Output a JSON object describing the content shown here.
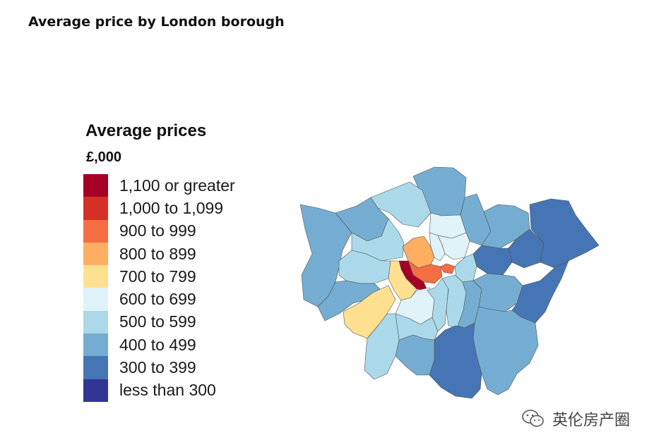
{
  "header": {
    "title": "Average price by London borough"
  },
  "legend": {
    "title": "Average prices",
    "unit": "£,000",
    "classes": [
      {
        "label": "1,100 or greater",
        "color": "#a50026"
      },
      {
        "label": "1,000 to 1,099",
        "color": "#d73027"
      },
      {
        "label": "900 to 999",
        "color": "#f46d43"
      },
      {
        "label": "800 to 899",
        "color": "#fdae61"
      },
      {
        "label": "700 to 799",
        "color": "#fee090"
      },
      {
        "label": "600 to 699",
        "color": "#e0f3f8"
      },
      {
        "label": "500 to 599",
        "color": "#abd9e9"
      },
      {
        "label": "400 to 499",
        "color": "#74add1"
      },
      {
        "label": "300 to 399",
        "color": "#4575b4"
      },
      {
        "label": "less than 300",
        "color": "#313695"
      }
    ]
  },
  "map": {
    "border_color": "#555555",
    "regions": [
      {
        "name": "Enfield",
        "class": "400 to 499"
      },
      {
        "name": "Barnet",
        "class": "500 to 599"
      },
      {
        "name": "Harrow",
        "class": "400 to 499"
      },
      {
        "name": "Hillingdon",
        "class": "400 to 499"
      },
      {
        "name": "Brent",
        "class": "500 to 599"
      },
      {
        "name": "Haringey",
        "class": "600 to 699"
      },
      {
        "name": "Waltham Forest",
        "class": "400 to 499"
      },
      {
        "name": "Redbridge",
        "class": "400 to 499"
      },
      {
        "name": "Havering",
        "class": "300 to 399"
      },
      {
        "name": "Barking and Dagenham",
        "class": "300 to 399"
      },
      {
        "name": "Newham",
        "class": "300 to 399"
      },
      {
        "name": "Hackney",
        "class": "600 to 699"
      },
      {
        "name": "Islington",
        "class": "600 to 699"
      },
      {
        "name": "Camden",
        "class": "800 to 899"
      },
      {
        "name": "City of London",
        "class": "900 to 999"
      },
      {
        "name": "Tower Hamlets",
        "class": "500 to 599"
      },
      {
        "name": "Westminster",
        "class": "900 to 999"
      },
      {
        "name": "Kensington and Chelsea",
        "class": "1,100 or greater"
      },
      {
        "name": "Hammersmith and Fulham",
        "class": "700 to 799"
      },
      {
        "name": "Ealing",
        "class": "500 to 599"
      },
      {
        "name": "Hounslow",
        "class": "400 to 499"
      },
      {
        "name": "Richmond upon Thames",
        "class": "700 to 799"
      },
      {
        "name": "Wandsworth",
        "class": "600 to 699"
      },
      {
        "name": "Lambeth",
        "class": "500 to 599"
      },
      {
        "name": "Southwark",
        "class": "500 to 599"
      },
      {
        "name": "Lewisham",
        "class": "400 to 499"
      },
      {
        "name": "Greenwich",
        "class": "400 to 499"
      },
      {
        "name": "Bexley",
        "class": "300 to 399"
      },
      {
        "name": "Bromley",
        "class": "400 to 499"
      },
      {
        "name": "Croydon",
        "class": "300 to 399"
      },
      {
        "name": "Sutton",
        "class": "400 to 499"
      },
      {
        "name": "Merton",
        "class": "500 to 599"
      },
      {
        "name": "Kingston upon Thames",
        "class": "500 to 599"
      }
    ]
  },
  "watermark": {
    "text": "英伦房产圈"
  }
}
